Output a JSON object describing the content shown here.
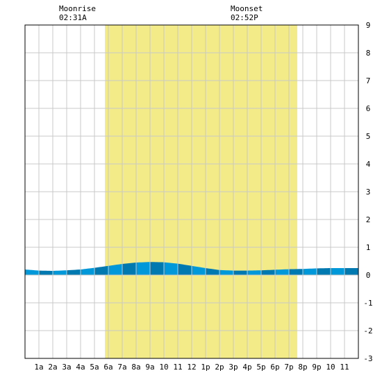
{
  "chart_data": {
    "type": "area",
    "x_unit": "hour of day",
    "xlim": [
      0,
      24
    ],
    "ylim": [
      -3,
      9
    ],
    "y_ticks": [
      -3,
      -2,
      -1,
      0,
      1,
      2,
      3,
      4,
      5,
      6,
      7,
      8,
      9
    ],
    "x_ticks": [
      {
        "hour": 1,
        "label": "1a"
      },
      {
        "hour": 2,
        "label": "2a"
      },
      {
        "hour": 3,
        "label": "3a"
      },
      {
        "hour": 4,
        "label": "4a"
      },
      {
        "hour": 5,
        "label": "5a"
      },
      {
        "hour": 6,
        "label": "6a"
      },
      {
        "hour": 7,
        "label": "7a"
      },
      {
        "hour": 8,
        "label": "8a"
      },
      {
        "hour": 9,
        "label": "9a"
      },
      {
        "hour": 10,
        "label": "10"
      },
      {
        "hour": 11,
        "label": "11"
      },
      {
        "hour": 12,
        "label": "12"
      },
      {
        "hour": 13,
        "label": "1p"
      },
      {
        "hour": 14,
        "label": "2p"
      },
      {
        "hour": 15,
        "label": "3p"
      },
      {
        "hour": 16,
        "label": "4p"
      },
      {
        "hour": 17,
        "label": "5p"
      },
      {
        "hour": 18,
        "label": "6p"
      },
      {
        "hour": 19,
        "label": "7p"
      },
      {
        "hour": 20,
        "label": "8p"
      },
      {
        "hour": 21,
        "label": "9p"
      },
      {
        "hour": 22,
        "label": "10"
      },
      {
        "hour": 23,
        "label": "11"
      }
    ],
    "daylight": [
      5.75,
      19.6
    ],
    "series": [
      {
        "x": [
          0,
          1,
          2,
          3,
          4,
          5,
          6,
          7,
          8,
          9,
          10,
          11,
          12,
          13,
          14,
          15,
          16,
          17,
          18,
          19,
          20,
          21,
          22,
          23,
          24
        ],
        "values": [
          0.2,
          0.16,
          0.15,
          0.17,
          0.2,
          0.26,
          0.33,
          0.4,
          0.45,
          0.47,
          0.46,
          0.41,
          0.33,
          0.25,
          0.18,
          0.16,
          0.16,
          0.17,
          0.19,
          0.21,
          0.22,
          0.24,
          0.25,
          0.25,
          0.25
        ]
      }
    ],
    "grid": true
  },
  "moonrise": {
    "label": "Moonrise",
    "time": "02:31A",
    "hour": 2.52
  },
  "moonset": {
    "label": "Moonset",
    "time": "02:52P",
    "hour": 14.87
  },
  "colors": {
    "daylight": "#f3eb88",
    "water_light": "#0098d8",
    "water_dark": "#0078b0",
    "grid": "#c8c8c8",
    "frame": "#000000"
  }
}
